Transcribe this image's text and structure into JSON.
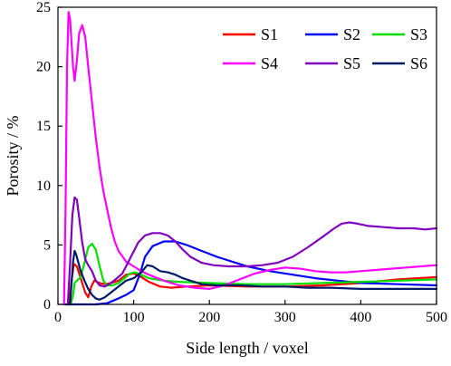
{
  "chart_data": {
    "type": "line",
    "xlabel": "Side length / voxel",
    "ylabel": "Porosity / %",
    "xlim": [
      0,
      500
    ],
    "ylim": [
      0,
      25
    ],
    "xticks": [
      0,
      100,
      200,
      300,
      400,
      500
    ],
    "yticks": [
      0,
      5,
      10,
      15,
      20,
      25
    ],
    "grid": false,
    "legend_position": "top-right",
    "series": [
      {
        "name": "S1",
        "color": "#ff0000",
        "points": [
          [
            15,
            0
          ],
          [
            18,
            2
          ],
          [
            21,
            3.4
          ],
          [
            25,
            3.2
          ],
          [
            30,
            2.2
          ],
          [
            36,
            1.0
          ],
          [
            40,
            0.6
          ],
          [
            44,
            1.5
          ],
          [
            48,
            2.0
          ],
          [
            55,
            1.8
          ],
          [
            62,
            1.7
          ],
          [
            70,
            1.8
          ],
          [
            80,
            2.0
          ],
          [
            90,
            2.5
          ],
          [
            100,
            2.6
          ],
          [
            110,
            2.3
          ],
          [
            120,
            1.9
          ],
          [
            135,
            1.5
          ],
          [
            150,
            1.4
          ],
          [
            170,
            1.5
          ],
          [
            200,
            1.6
          ],
          [
            250,
            1.5
          ],
          [
            300,
            1.5
          ],
          [
            350,
            1.6
          ],
          [
            400,
            1.8
          ],
          [
            450,
            2.1
          ],
          [
            500,
            2.3
          ]
        ]
      },
      {
        "name": "S2",
        "color": "#0000ff",
        "points": [
          [
            10,
            0
          ],
          [
            50,
            0
          ],
          [
            65,
            0.1
          ],
          [
            80,
            0.5
          ],
          [
            90,
            0.8
          ],
          [
            100,
            1.2
          ],
          [
            108,
            2.5
          ],
          [
            115,
            4.0
          ],
          [
            125,
            4.9
          ],
          [
            140,
            5.3
          ],
          [
            155,
            5.3
          ],
          [
            170,
            5.0
          ],
          [
            190,
            4.5
          ],
          [
            210,
            4.0
          ],
          [
            230,
            3.6
          ],
          [
            250,
            3.2
          ],
          [
            280,
            2.8
          ],
          [
            310,
            2.5
          ],
          [
            340,
            2.2
          ],
          [
            370,
            2.0
          ],
          [
            400,
            1.8
          ],
          [
            450,
            1.7
          ],
          [
            500,
            1.6
          ]
        ]
      },
      {
        "name": "S3",
        "color": "#00e000",
        "points": [
          [
            17,
            0
          ],
          [
            20,
            0.8
          ],
          [
            22,
            1.8
          ],
          [
            25,
            2.0
          ],
          [
            30,
            2.3
          ],
          [
            35,
            3.5
          ],
          [
            40,
            4.8
          ],
          [
            45,
            5.1
          ],
          [
            50,
            4.6
          ],
          [
            55,
            3.2
          ],
          [
            60,
            2.0
          ],
          [
            65,
            1.6
          ],
          [
            72,
            1.6
          ],
          [
            80,
            1.8
          ],
          [
            88,
            2.2
          ],
          [
            95,
            2.6
          ],
          [
            102,
            2.7
          ],
          [
            110,
            2.5
          ],
          [
            120,
            2.2
          ],
          [
            140,
            2.0
          ],
          [
            160,
            1.9
          ],
          [
            200,
            1.8
          ],
          [
            250,
            1.7
          ],
          [
            300,
            1.7
          ],
          [
            350,
            1.8
          ],
          [
            400,
            1.9
          ],
          [
            450,
            2.0
          ],
          [
            500,
            2.1
          ]
        ]
      },
      {
        "name": "S4",
        "color": "#ff00ff",
        "points": [
          [
            8,
            0
          ],
          [
            10,
            8
          ],
          [
            12,
            20
          ],
          [
            14,
            24.6
          ],
          [
            16,
            24.0
          ],
          [
            18,
            22.0
          ],
          [
            20,
            20.0
          ],
          [
            22,
            18.8
          ],
          [
            25,
            20.5
          ],
          [
            28,
            22.8
          ],
          [
            32,
            23.5
          ],
          [
            36,
            22.5
          ],
          [
            40,
            20.0
          ],
          [
            45,
            17.0
          ],
          [
            50,
            14.0
          ],
          [
            55,
            11.5
          ],
          [
            60,
            9.5
          ],
          [
            65,
            8.0
          ],
          [
            70,
            6.5
          ],
          [
            75,
            5.3
          ],
          [
            80,
            4.5
          ],
          [
            90,
            3.6
          ],
          [
            100,
            3.2
          ],
          [
            110,
            2.8
          ],
          [
            120,
            2.5
          ],
          [
            140,
            2.0
          ],
          [
            160,
            1.6
          ],
          [
            180,
            1.4
          ],
          [
            200,
            1.3
          ],
          [
            220,
            1.6
          ],
          [
            240,
            2.1
          ],
          [
            260,
            2.6
          ],
          [
            280,
            2.9
          ],
          [
            300,
            3.1
          ],
          [
            320,
            3.0
          ],
          [
            340,
            2.8
          ],
          [
            360,
            2.7
          ],
          [
            380,
            2.7
          ],
          [
            400,
            2.8
          ],
          [
            420,
            2.9
          ],
          [
            440,
            3.0
          ],
          [
            460,
            3.1
          ],
          [
            480,
            3.2
          ],
          [
            500,
            3.3
          ]
        ]
      },
      {
        "name": "S5",
        "color": "#8000c0",
        "points": [
          [
            13,
            0
          ],
          [
            16,
            3.5
          ],
          [
            19,
            7.5
          ],
          [
            22,
            9.0
          ],
          [
            25,
            8.8
          ],
          [
            28,
            7.3
          ],
          [
            32,
            5.2
          ],
          [
            36,
            3.8
          ],
          [
            40,
            3.3
          ],
          [
            45,
            2.8
          ],
          [
            50,
            2.0
          ],
          [
            55,
            1.6
          ],
          [
            62,
            1.5
          ],
          [
            70,
            1.8
          ],
          [
            78,
            2.2
          ],
          [
            85,
            2.6
          ],
          [
            90,
            3.2
          ],
          [
            98,
            4.2
          ],
          [
            106,
            5.2
          ],
          [
            115,
            5.8
          ],
          [
            125,
            6.0
          ],
          [
            135,
            6.0
          ],
          [
            145,
            5.8
          ],
          [
            155,
            5.3
          ],
          [
            165,
            4.6
          ],
          [
            175,
            4.0
          ],
          [
            190,
            3.5
          ],
          [
            205,
            3.3
          ],
          [
            225,
            3.2
          ],
          [
            250,
            3.2
          ],
          [
            270,
            3.3
          ],
          [
            290,
            3.5
          ],
          [
            310,
            4.0
          ],
          [
            330,
            4.8
          ],
          [
            350,
            5.7
          ],
          [
            365,
            6.4
          ],
          [
            375,
            6.8
          ],
          [
            385,
            6.9
          ],
          [
            395,
            6.8
          ],
          [
            410,
            6.6
          ],
          [
            430,
            6.5
          ],
          [
            450,
            6.4
          ],
          [
            470,
            6.4
          ],
          [
            485,
            6.3
          ],
          [
            500,
            6.4
          ]
        ]
      },
      {
        "name": "S6",
        "color": "#001a66",
        "points": [
          [
            16,
            0
          ],
          [
            18,
            1.8
          ],
          [
            20,
            3.6
          ],
          [
            22,
            4.5
          ],
          [
            24,
            4.2
          ],
          [
            27,
            3.5
          ],
          [
            30,
            2.8
          ],
          [
            35,
            2.0
          ],
          [
            40,
            1.3
          ],
          [
            45,
            0.8
          ],
          [
            50,
            0.5
          ],
          [
            55,
            0.4
          ],
          [
            62,
            0.6
          ],
          [
            70,
            1.0
          ],
          [
            80,
            1.5
          ],
          [
            90,
            2.0
          ],
          [
            100,
            2.2
          ],
          [
            110,
            2.7
          ],
          [
            118,
            3.3
          ],
          [
            125,
            3.2
          ],
          [
            135,
            2.8
          ],
          [
            145,
            2.7
          ],
          [
            155,
            2.5
          ],
          [
            165,
            2.2
          ],
          [
            175,
            2.0
          ],
          [
            190,
            1.7
          ],
          [
            210,
            1.6
          ],
          [
            240,
            1.6
          ],
          [
            270,
            1.5
          ],
          [
            300,
            1.5
          ],
          [
            330,
            1.4
          ],
          [
            360,
            1.4
          ],
          [
            400,
            1.3
          ],
          [
            450,
            1.3
          ],
          [
            500,
            1.3
          ]
        ]
      }
    ]
  }
}
